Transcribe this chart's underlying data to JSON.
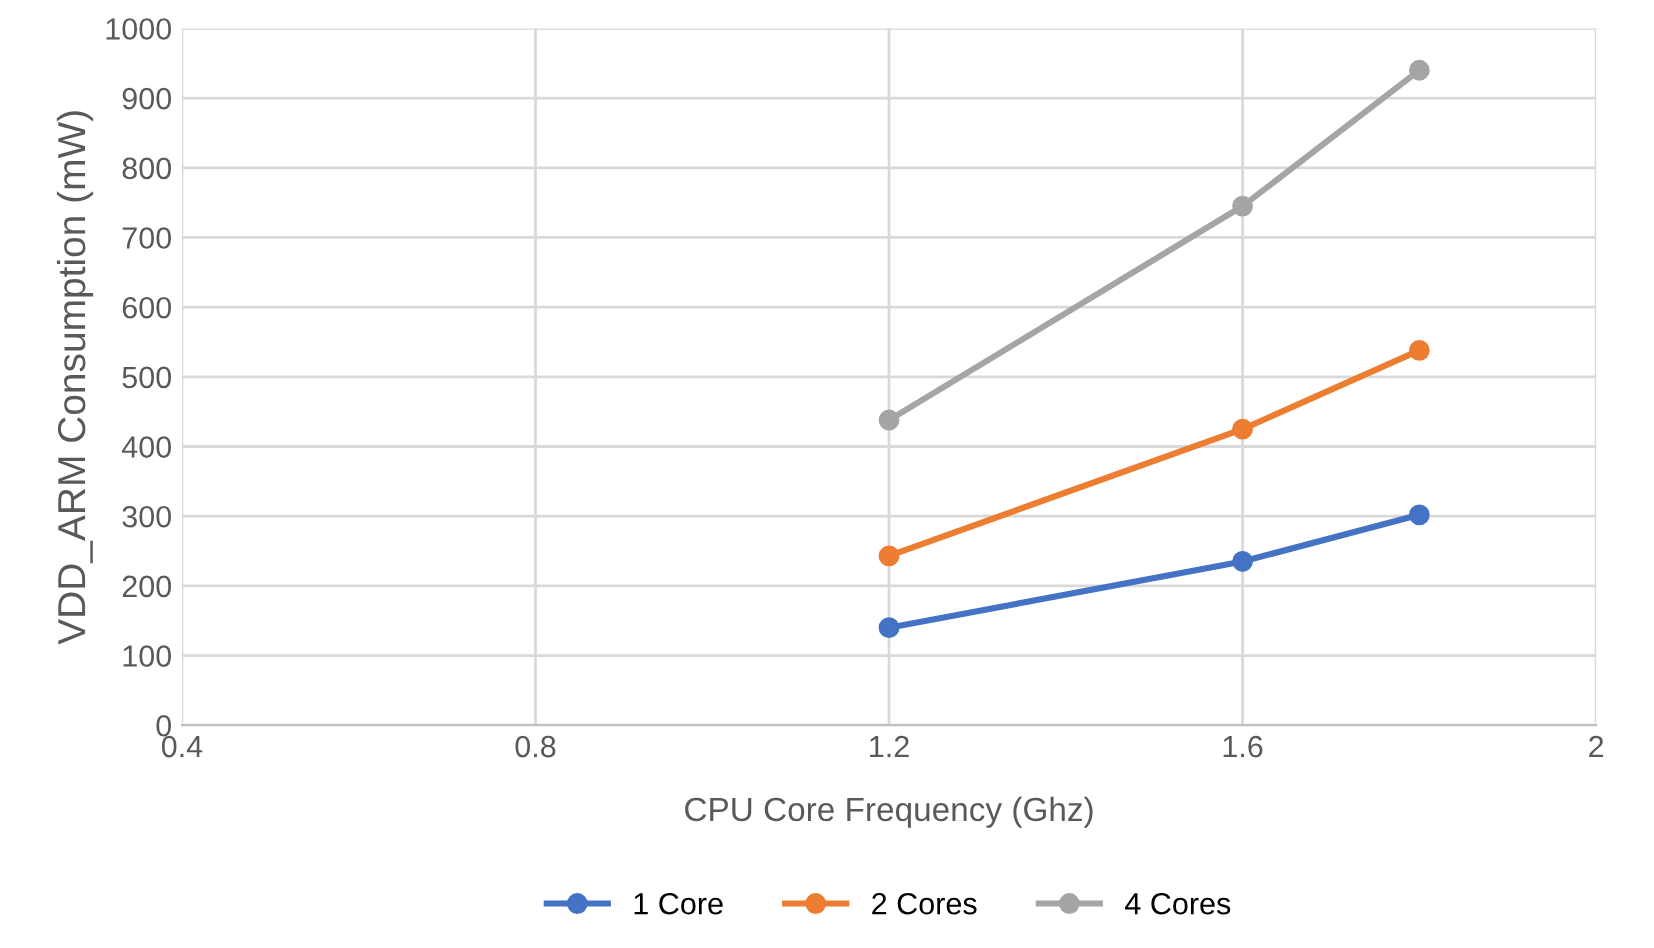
{
  "chart_data": {
    "type": "line",
    "xlabel": "CPU Core Frequency (Ghz)",
    "ylabel": "VDD_ARM Consumption (mW)",
    "x": [
      1.2,
      1.6,
      1.8
    ],
    "series": [
      {
        "name": "1 Core",
        "color": "#4472c4",
        "values": [
          140,
          235,
          302
        ]
      },
      {
        "name": "2 Cores",
        "color": "#ed7d31",
        "values": [
          243,
          425,
          538
        ]
      },
      {
        "name": "4 Cores",
        "color": "#a5a5a5",
        "values": [
          438,
          745,
          940
        ]
      }
    ],
    "xlim": [
      0.4,
      2
    ],
    "xticks": [
      0.4,
      0.8,
      1.2,
      1.6,
      2
    ],
    "ylim": [
      0,
      1000
    ],
    "yticks": [
      0,
      100,
      200,
      300,
      400,
      500,
      600,
      700,
      800,
      900,
      1000
    ],
    "grid": true,
    "legend": "bottom",
    "marker": "circle",
    "line_style": "solid"
  }
}
